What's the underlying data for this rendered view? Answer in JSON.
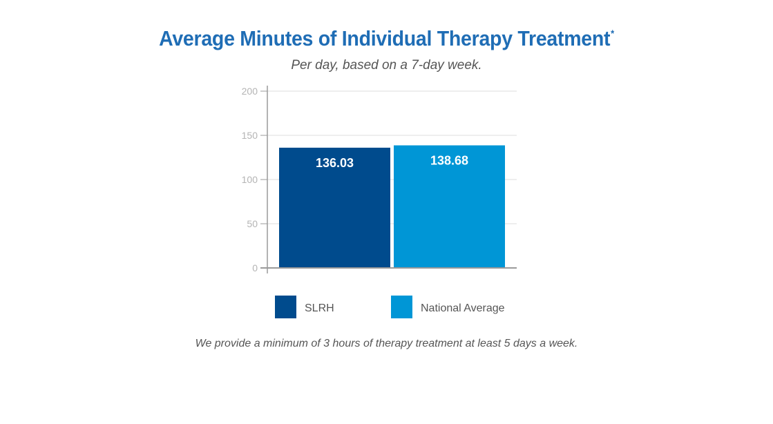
{
  "chart_data": {
    "type": "bar",
    "title": "Average Minutes of Individual Therapy Treatment",
    "title_mark": "*",
    "subtitle": "Per day, based on a 7-day week.",
    "footnote": "We provide a minimum of 3 hours of therapy treatment at least 5 days a week.",
    "xlabel": "",
    "ylabel": "",
    "ylim": [
      0,
      200
    ],
    "yticks": [
      0,
      50,
      100,
      150,
      200
    ],
    "grid": true,
    "legend_position": "bottom",
    "series": [
      {
        "name": "SLRH",
        "value": 136.03,
        "label": "136.03",
        "color": "#004b8d"
      },
      {
        "name": "National Average",
        "value": 138.68,
        "label": "138.68",
        "color": "#0096d6"
      }
    ]
  }
}
